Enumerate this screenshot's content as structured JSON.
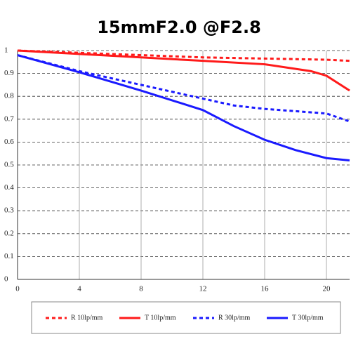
{
  "chart_data": {
    "type": "line",
    "title": "15mmF2.0 @F2.8",
    "xlim": [
      0,
      21.5
    ],
    "ylim": [
      0,
      1
    ],
    "xticks": [
      0,
      4,
      8,
      12,
      16,
      20
    ],
    "yticks": [
      0,
      0.1,
      0.2,
      0.3,
      0.4,
      0.5,
      0.6,
      0.7,
      0.8,
      0.9,
      1
    ],
    "grid": true,
    "series": [
      {
        "name": "R 10lp/mm",
        "color": "#ff1a1a",
        "style": "dotted",
        "x": [
          0,
          4,
          8,
          12,
          16,
          20,
          21.5
        ],
        "values": [
          1,
          0.99,
          0.98,
          0.97,
          0.965,
          0.96,
          0.955
        ]
      },
      {
        "name": "T 10lp/mm",
        "color": "#ff1a1a",
        "style": "solid",
        "x": [
          0,
          4,
          8,
          12,
          16,
          19,
          20,
          21.5
        ],
        "values": [
          1,
          0.985,
          0.97,
          0.955,
          0.94,
          0.91,
          0.89,
          0.825
        ]
      },
      {
        "name": "R 30lp/mm",
        "color": "#1a1aff",
        "style": "dotted",
        "x": [
          0,
          4,
          8,
          12,
          14,
          16,
          20,
          21.5
        ],
        "values": [
          0.98,
          0.91,
          0.85,
          0.79,
          0.76,
          0.745,
          0.725,
          0.69
        ]
      },
      {
        "name": "T 30lp/mm",
        "color": "#1a1aff",
        "style": "solid",
        "x": [
          0,
          4,
          8,
          12,
          14,
          16,
          18,
          20,
          21.5
        ],
        "values": [
          0.98,
          0.905,
          0.825,
          0.74,
          0.67,
          0.61,
          0.565,
          0.53,
          0.52
        ]
      }
    ]
  }
}
